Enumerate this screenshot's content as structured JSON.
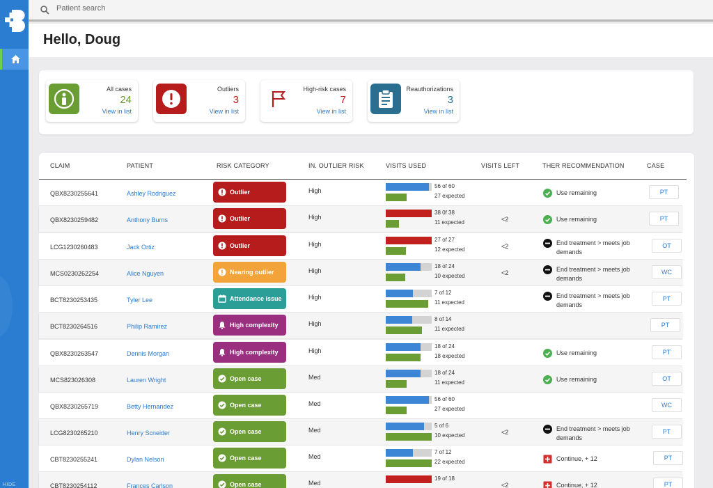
{
  "app": {
    "hide_label": "HIDE",
    "accent": "#2a7dd1"
  },
  "search": {
    "placeholder": "Patient search"
  },
  "greeting": "Hello, Doug",
  "summary": [
    {
      "label": "All cases",
      "count": "24",
      "link": "View in list",
      "color": "#6a9e34",
      "icon": "person-icon"
    },
    {
      "label": "Outliers",
      "count": "3",
      "link": "View in list",
      "color": "#b71c1c",
      "icon": "alert-icon"
    },
    {
      "label": "High-risk cases",
      "count": "7",
      "link": "View in list",
      "color": "#b71c1c",
      "icon": "flag-icon"
    },
    {
      "label": "Reauthorizations",
      "count": "3",
      "link": "View in list",
      "color": "#2a6f8f",
      "icon": "clipboard-icon"
    }
  ],
  "table": {
    "headers": {
      "claim": "CLAIM",
      "patient": "PATIENT",
      "risk_category": "RISK CATEGORY",
      "outlier_risk": "IN. OUTLIER RISK",
      "visits_used": "VISITS USED",
      "visits_left": "VISITS LEFT",
      "recommendation": "THER RECOMMENDATION",
      "case": "CASE"
    },
    "rows": [
      {
        "claim": "QBX8230255641",
        "patient": "Ashley Rodriguez",
        "risk": "Outlier",
        "risk_type": "outlier",
        "level": "High",
        "used_text": "56 of 60",
        "used": 56,
        "total": 60,
        "expected_text": "27 expected",
        "expected": 27,
        "used_color": "blue",
        "left": "",
        "rec": "Use remaining",
        "rec_type": "check",
        "case": "PT"
      },
      {
        "claim": "QBX8230259482",
        "patient": "Anthony Burns",
        "risk": "Outlier",
        "risk_type": "outlier",
        "level": "High",
        "used_text": "38 0f 38",
        "used": 38,
        "total": 38,
        "expected_text": "11 expected",
        "expected": 11,
        "used_color": "red",
        "left": "<2",
        "rec": "Use remaining",
        "rec_type": "check",
        "case": "PT"
      },
      {
        "claim": "LCG1230260483",
        "patient": "Jack Ortiz",
        "risk": "Outlier",
        "risk_type": "outlier",
        "level": "High",
        "used_text": "27 of 27",
        "used": 27,
        "total": 27,
        "expected_text": "12 expected",
        "expected": 12,
        "used_color": "red",
        "left": "<2",
        "rec": "End treatment > meets job demands",
        "rec_type": "stop",
        "case": "OT"
      },
      {
        "claim": "MCS0230262254",
        "patient": "Alice Nguyen",
        "risk": "Nearing outlier",
        "risk_type": "nearing",
        "level": "High",
        "used_text": "18 of 24",
        "used": 18,
        "total": 24,
        "expected_text": "10 expected",
        "expected": 10,
        "used_color": "blue",
        "left": "<2",
        "rec": "End treatment > meets job demands",
        "rec_type": "stop",
        "case": "WC"
      },
      {
        "claim": "BCT8230253435",
        "patient": "Tyler Lee",
        "risk": "Attendance issue",
        "risk_type": "attendance",
        "level": "High",
        "used_text": "7 of 12",
        "used": 7,
        "total": 12,
        "expected_text": "11 expected",
        "expected": 11,
        "used_color": "blue",
        "left": "",
        "rec": "End treatment > meets job demands",
        "rec_type": "stop",
        "case": "PT"
      },
      {
        "claim": "BCT8230264516",
        "patient": "Philip Ramirez",
        "risk": "High complexity",
        "risk_type": "complexity",
        "level": "High",
        "used_text": "8 of 14",
        "used": 8,
        "total": 14,
        "expected_text": "11 expected",
        "expected": 11,
        "used_color": "blue",
        "left": "",
        "rec": "",
        "rec_type": "none",
        "case": "PT"
      },
      {
        "claim": "QBX8230263547",
        "patient": "Dennis Morgan",
        "risk": "High complexity",
        "risk_type": "complexity",
        "level": "High",
        "used_text": "18 of 24",
        "used": 18,
        "total": 24,
        "expected_text": "18 expected",
        "expected": 18,
        "used_color": "blue",
        "left": "",
        "rec": "Use remaining",
        "rec_type": "check",
        "case": "PT"
      },
      {
        "claim": "MCS823026308",
        "patient": "Lauren Wright",
        "risk": "Open case",
        "risk_type": "open",
        "level": "Med",
        "used_text": "18 of 24",
        "used": 18,
        "total": 24,
        "expected_text": "11 expected",
        "expected": 11,
        "used_color": "blue",
        "left": "",
        "rec": "Use remaining",
        "rec_type": "check",
        "case": "OT"
      },
      {
        "claim": "QBX8230265719",
        "patient": "Betty Hernandez",
        "risk": "Open case",
        "risk_type": "open",
        "level": "Med",
        "used_text": "56 of 60",
        "used": 56,
        "total": 60,
        "expected_text": "27 expected",
        "expected": 27,
        "used_color": "blue",
        "left": "",
        "rec": "",
        "rec_type": "none",
        "case": "WC"
      },
      {
        "claim": "LCG8230265210",
        "patient": "Henry Scneider",
        "risk": "Open case",
        "risk_type": "open",
        "level": "Med",
        "used_text": "5 of 6",
        "used": 5,
        "total": 6,
        "expected_text": "10 expected",
        "expected": 10,
        "used_color": "blue",
        "left": "<2",
        "rec": "End treatment > meets job demands",
        "rec_type": "stop",
        "case": "PT"
      },
      {
        "claim": "CBT8230255241",
        "patient": "Dylan Nelson",
        "risk": "Open case",
        "risk_type": "open",
        "level": "Med",
        "used_text": "7 of 12",
        "used": 7,
        "total": 12,
        "expected_text": "22 expected",
        "expected": 22,
        "used_color": "blue",
        "left": "",
        "rec": "Continue, + 12",
        "rec_type": "plus",
        "case": "PT"
      },
      {
        "claim": "CBT8230254112",
        "patient": "Frances Carlson",
        "risk": "Open case",
        "risk_type": "open",
        "level": "Med",
        "used_text": "19 of 18",
        "used": 19,
        "total": 18,
        "expected_text": "",
        "expected": 0,
        "used_color": "red",
        "left": "<2",
        "rec": "Continue, + 12",
        "rec_type": "plus",
        "case": "PT"
      }
    ]
  },
  "colors": {
    "outlier": "#b71c1c",
    "nearing": "#f2a33a",
    "attendance": "#2b9e98",
    "complexity": "#9a2f7f",
    "open": "#6a9e34",
    "blue": "#3d86d6",
    "red": "#c21f1f"
  }
}
